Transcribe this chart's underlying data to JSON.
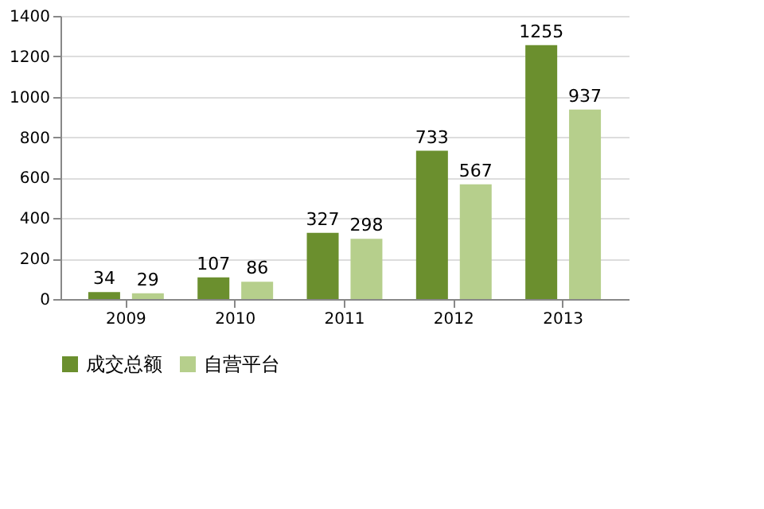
{
  "chart_data": {
    "type": "bar",
    "categories": [
      "2009",
      "2010",
      "2011",
      "2012",
      "2013"
    ],
    "series": [
      {
        "name": "成交总额",
        "color": "#6b8f2e",
        "values": [
          34,
          107,
          327,
          733,
          1255
        ]
      },
      {
        "name": "自营平台",
        "color": "#b6cf8c",
        "values": [
          29,
          86,
          298,
          567,
          937
        ]
      }
    ],
    "ylim": [
      0,
      1400
    ],
    "yticks": [
      0,
      200,
      400,
      600,
      800,
      1000,
      1200,
      1400
    ],
    "grid": "y",
    "legend": "bottom",
    "data_labels": true
  }
}
